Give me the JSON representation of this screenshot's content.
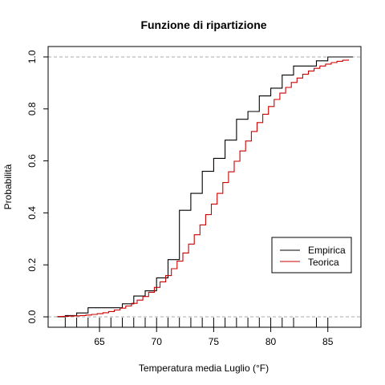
{
  "chart_data": {
    "type": "line",
    "title": "Funzione di ripartizione",
    "xlabel": "Temperatura media Luglio (°F)",
    "ylabel": "Probabilità",
    "xlim": [
      60.5,
      87.9
    ],
    "ylim": [
      -0.04,
      1.04
    ],
    "x_ticks": [
      65,
      70,
      75,
      80,
      85
    ],
    "x_tick_labels": [
      "65",
      "70",
      "75",
      "80",
      "85"
    ],
    "y_ticks": [
      0.0,
      0.2,
      0.4,
      0.6,
      0.8,
      1.0
    ],
    "y_tick_labels": [
      "0.0",
      "0.2",
      "0.4",
      "0.6",
      "0.8",
      "1.0"
    ],
    "reference_lines_y": [
      0,
      1
    ],
    "rug_x": [
      62,
      63,
      64,
      65,
      66,
      67,
      68,
      69,
      70,
      71,
      72,
      73,
      74,
      75,
      76,
      77,
      78,
      79,
      80,
      81,
      82,
      84,
      85
    ],
    "theoretical_distribution": {
      "mean": 75.6,
      "sd": 4.8
    },
    "legend": {
      "position": "bottom-right",
      "entries": [
        "Empirica",
        "Teorica"
      ]
    },
    "series": [
      {
        "name": "Empirica",
        "color": "#000000",
        "step": true,
        "x": [
          61.3,
          62,
          63,
          64,
          65,
          66,
          67,
          68,
          69,
          70,
          71,
          72,
          73,
          74,
          75,
          76,
          77,
          78,
          79,
          80,
          81,
          82,
          84,
          85,
          87.2
        ],
        "y": [
          0.0,
          0.005,
          0.015,
          0.035,
          0.035,
          0.035,
          0.05,
          0.08,
          0.1,
          0.15,
          0.22,
          0.41,
          0.475,
          0.56,
          0.61,
          0.68,
          0.76,
          0.79,
          0.85,
          0.88,
          0.93,
          0.965,
          0.985,
          1.0,
          1.0
        ]
      },
      {
        "name": "Teorica",
        "color": "#cc0000",
        "step": true,
        "x_from": 61.3,
        "x_to": 87.2,
        "x_step": 0.5
      }
    ]
  }
}
